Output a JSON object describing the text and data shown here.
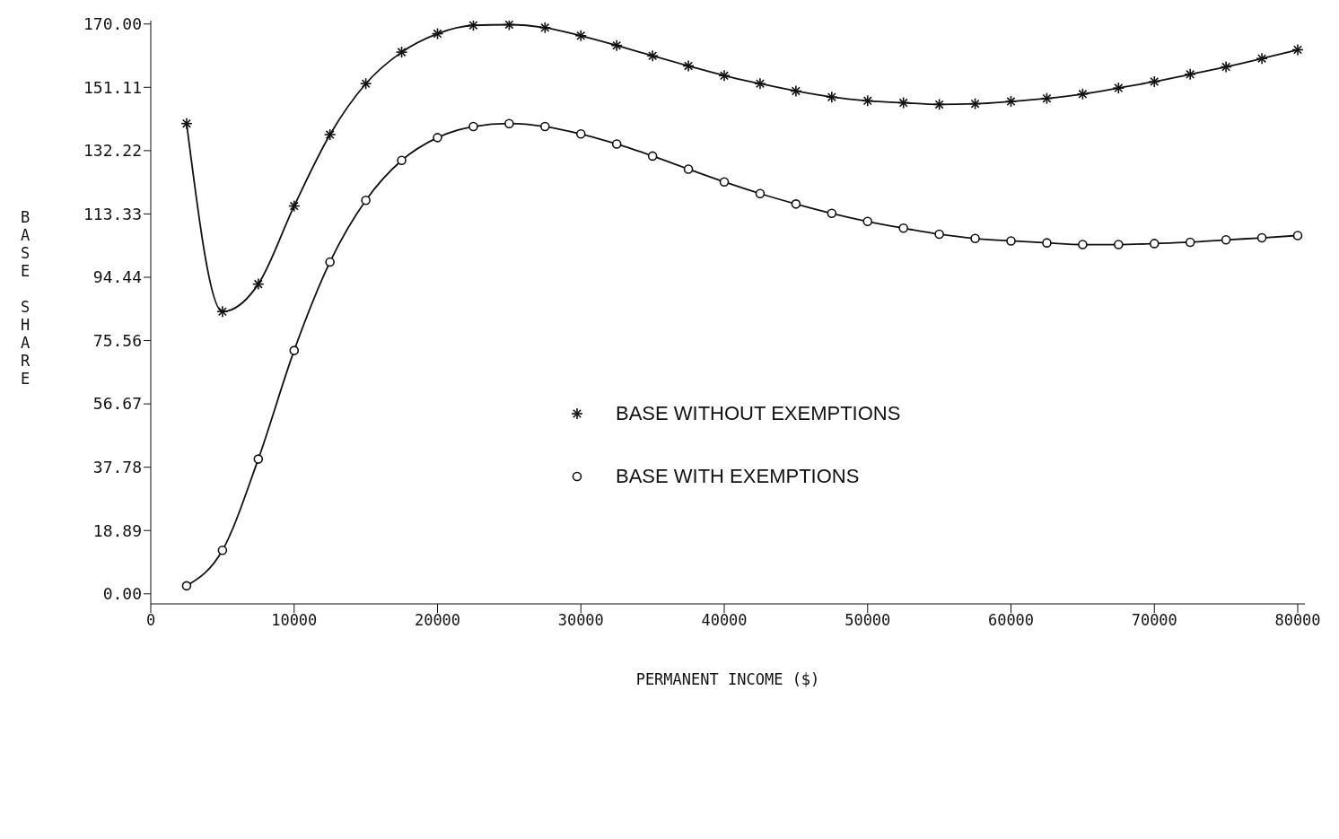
{
  "chart_data": {
    "type": "line",
    "xlabel": "PERMANENT INCOME ($)",
    "ylabel": "BASE SHARE",
    "x": [
      2500,
      5000,
      7500,
      10000,
      12500,
      15000,
      17500,
      20000,
      22500,
      25000,
      27500,
      30000,
      32500,
      35000,
      37500,
      40000,
      42500,
      45000,
      47500,
      50000,
      52500,
      55000,
      57500,
      60000,
      62500,
      65000,
      67500,
      70000,
      72500,
      75000,
      77500,
      80000
    ],
    "series": [
      {
        "name": "BASE WITHOUT EXEMPTIONS",
        "color": "#111111",
        "marker": "cross",
        "values": [
          140.3,
          84.2,
          92.4,
          115.7,
          137.0,
          152.2,
          161.6,
          167.1,
          169.6,
          169.8,
          168.9,
          166.5,
          163.6,
          160.5,
          157.5,
          154.6,
          152.2,
          150.0,
          148.2,
          147.1,
          146.5,
          146.0,
          146.2,
          146.9,
          147.8,
          149.1,
          150.9,
          152.8,
          155.0,
          157.2,
          159.7,
          162.3
        ]
      },
      {
        "name": "BASE WITH EXEMPTIONS",
        "color": "#111111",
        "marker": "circle",
        "values": [
          2.4,
          13.0,
          40.2,
          72.6,
          99.0,
          117.4,
          129.3,
          136.1,
          139.4,
          140.3,
          139.4,
          137.2,
          134.2,
          130.6,
          126.7,
          122.9,
          119.4,
          116.3,
          113.5,
          111.1,
          109.1,
          107.3,
          106.0,
          105.3,
          104.7,
          104.2,
          104.2,
          104.5,
          104.9,
          105.6,
          106.2,
          106.9
        ]
      }
    ],
    "xlim": [
      0,
      80500
    ],
    "xticks": [
      0,
      10000,
      20000,
      30000,
      40000,
      50000,
      60000,
      70000,
      80000
    ],
    "ylim": [
      -3,
      171
    ],
    "yticks": [
      {
        "value": 0,
        "label": "0.00"
      },
      18.89,
      37.78,
      56.67,
      75.56,
      94.44,
      113.33,
      132.22,
      151.11,
      {
        "value": 170,
        "label": "170.00"
      }
    ],
    "grid": false,
    "legend": "center",
    "line_style": "solid"
  }
}
